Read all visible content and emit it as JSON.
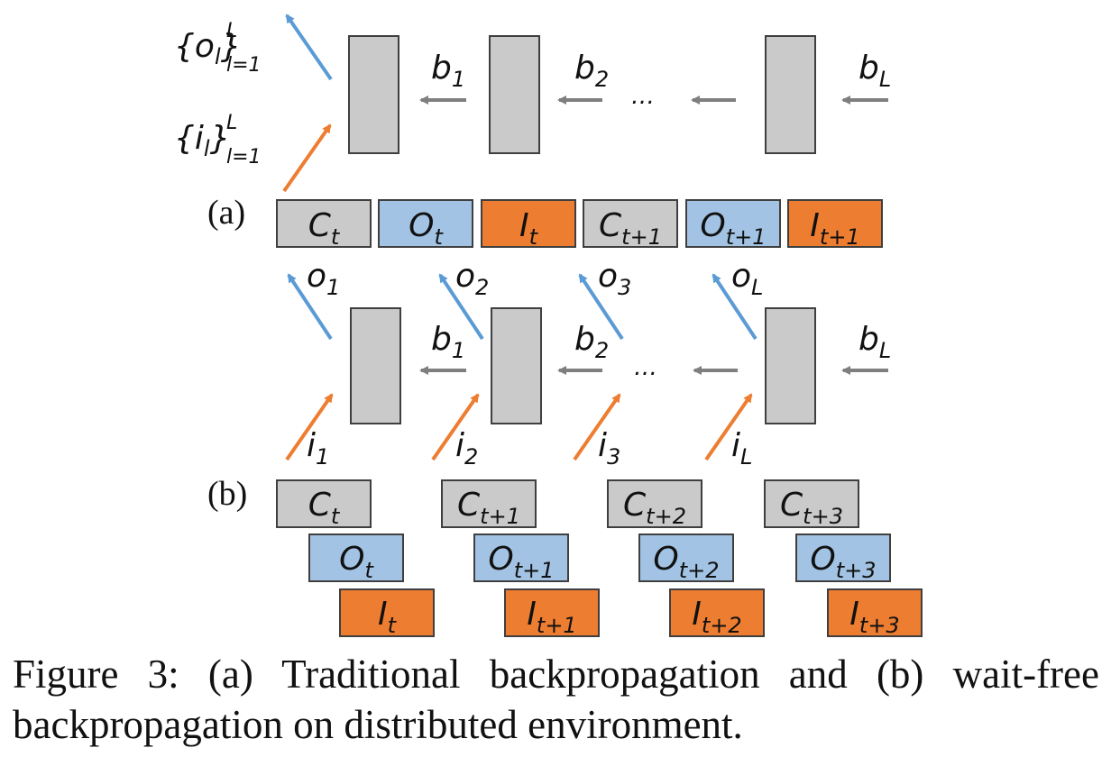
{
  "colors": {
    "gray_fill": "#cacaca",
    "blue_fill": "#a2c3e3",
    "orange_fill": "#ed7d31",
    "box_stroke": "#3f3f3f",
    "blue_arrow": "#5b9bd5",
    "orange_arrow": "#ed7d31",
    "gray_arrow": "#7f7f7f"
  },
  "panel_a": {
    "label": "(a)",
    "output_set": {
      "base": "{o",
      "sub": "l",
      "close": "}",
      "sup": "L",
      "lower": "l=1"
    },
    "input_set": {
      "base": "{i",
      "sub": "l",
      "close": "}",
      "sup": "L",
      "lower": "l=1"
    },
    "grads": [
      {
        "base": "b",
        "sub": "1"
      },
      {
        "base": "b",
        "sub": "2"
      },
      {
        "base": "b",
        "sub": "L"
      }
    ],
    "ellipsis": "…",
    "timeline": [
      {
        "base": "C",
        "sub": "t"
      },
      {
        "base": "O",
        "sub": "t"
      },
      {
        "base": "I",
        "sub": "t"
      },
      {
        "base": "C",
        "sub": "t+1"
      },
      {
        "base": "O",
        "sub": "t+1"
      },
      {
        "base": "I",
        "sub": "t+1"
      }
    ]
  },
  "panel_b": {
    "label": "(b)",
    "outputs": [
      {
        "base": "o",
        "sub": "1"
      },
      {
        "base": "o",
        "sub": "2"
      },
      {
        "base": "o",
        "sub": "3"
      },
      {
        "base": "o",
        "sub": "L"
      }
    ],
    "inputs": [
      {
        "base": "i",
        "sub": "1"
      },
      {
        "base": "i",
        "sub": "2"
      },
      {
        "base": "i",
        "sub": "3"
      },
      {
        "base": "i",
        "sub": "L"
      }
    ],
    "grads": [
      {
        "base": "b",
        "sub": "1"
      },
      {
        "base": "b",
        "sub": "2"
      },
      {
        "base": "b",
        "sub": "L"
      }
    ],
    "ellipsis": "…",
    "compute_row": [
      {
        "base": "C",
        "sub": "t"
      },
      {
        "base": "C",
        "sub": "t+1"
      },
      {
        "base": "C",
        "sub": "t+2"
      },
      {
        "base": "C",
        "sub": "t+3"
      }
    ],
    "output_row": [
      {
        "base": "O",
        "sub": "t"
      },
      {
        "base": "O",
        "sub": "t+1"
      },
      {
        "base": "O",
        "sub": "t+2"
      },
      {
        "base": "O",
        "sub": "t+3"
      }
    ],
    "input_row": [
      {
        "base": "I",
        "sub": "t"
      },
      {
        "base": "I",
        "sub": "t+1"
      },
      {
        "base": "I",
        "sub": "t+2"
      },
      {
        "base": "I",
        "sub": "t+3"
      }
    ]
  },
  "caption": "Figure 3:  (a) Traditional backpropagation and (b) wait-free backpropagation on distributed environment."
}
